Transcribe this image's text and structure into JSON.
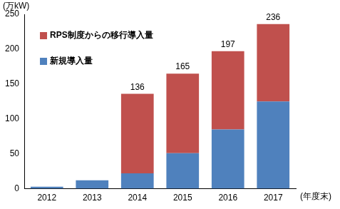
{
  "chart_data": {
    "type": "bar",
    "stacked": true,
    "categories": [
      "2012",
      "2013",
      "2014",
      "2015",
      "2016",
      "2017"
    ],
    "series": [
      {
        "name": "新規導入量",
        "color": "#4F81BD",
        "values": [
          3,
          12,
          22,
          51,
          85,
          125
        ]
      },
      {
        "name": "RPS制度からの移行導入量",
        "color": "#C0504D",
        "values": [
          0,
          0,
          114,
          114,
          112,
          111
        ]
      }
    ],
    "total_labels": [
      null,
      null,
      136,
      165,
      197,
      236
    ],
    "y_label": "(万kW)",
    "x_label": "(年度末)",
    "ylim": [
      0,
      250
    ],
    "yticks": [
      0,
      50,
      100,
      150,
      200,
      250
    ],
    "grid": false,
    "legend": "upper left"
  }
}
